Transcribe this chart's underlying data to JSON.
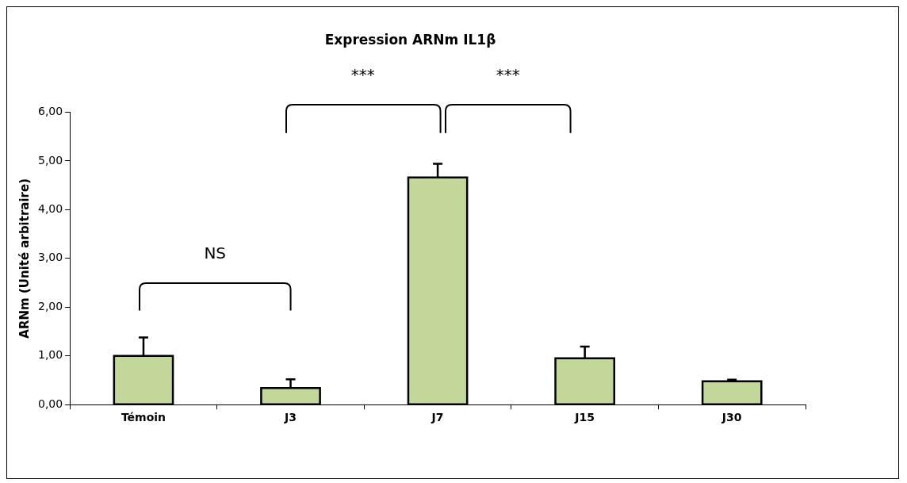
{
  "chart_data": {
    "type": "bar",
    "title": "Expression ARNm IL1β",
    "ylabel": "ARNm (Unité arbitraire)",
    "categories": [
      "Témoin",
      "J3",
      "J7",
      "J15",
      "J30"
    ],
    "values": [
      1.0,
      0.34,
      4.66,
      0.95,
      0.48
    ],
    "errors": [
      [
        1.0,
        1.38
      ],
      [
        0.34,
        0.52
      ],
      [
        4.66,
        4.94
      ],
      [
        0.95,
        1.19
      ],
      [
        0.48,
        0.51
      ]
    ],
    "color": "#c4d79b",
    "ylim": [
      0,
      6
    ],
    "yticks": [
      {
        "value": 0,
        "label": "0,00"
      },
      {
        "value": 1,
        "label": "1,00"
      },
      {
        "value": 2,
        "label": "2,00"
      },
      {
        "value": 3,
        "label": "3,00"
      },
      {
        "value": 4,
        "label": "4,00"
      },
      {
        "value": 5,
        "label": "5,00"
      },
      {
        "value": 6,
        "label": "6,00"
      }
    ],
    "grid": false,
    "legend": false,
    "annotations": [
      "NS",
      "***",
      "***"
    ]
  }
}
